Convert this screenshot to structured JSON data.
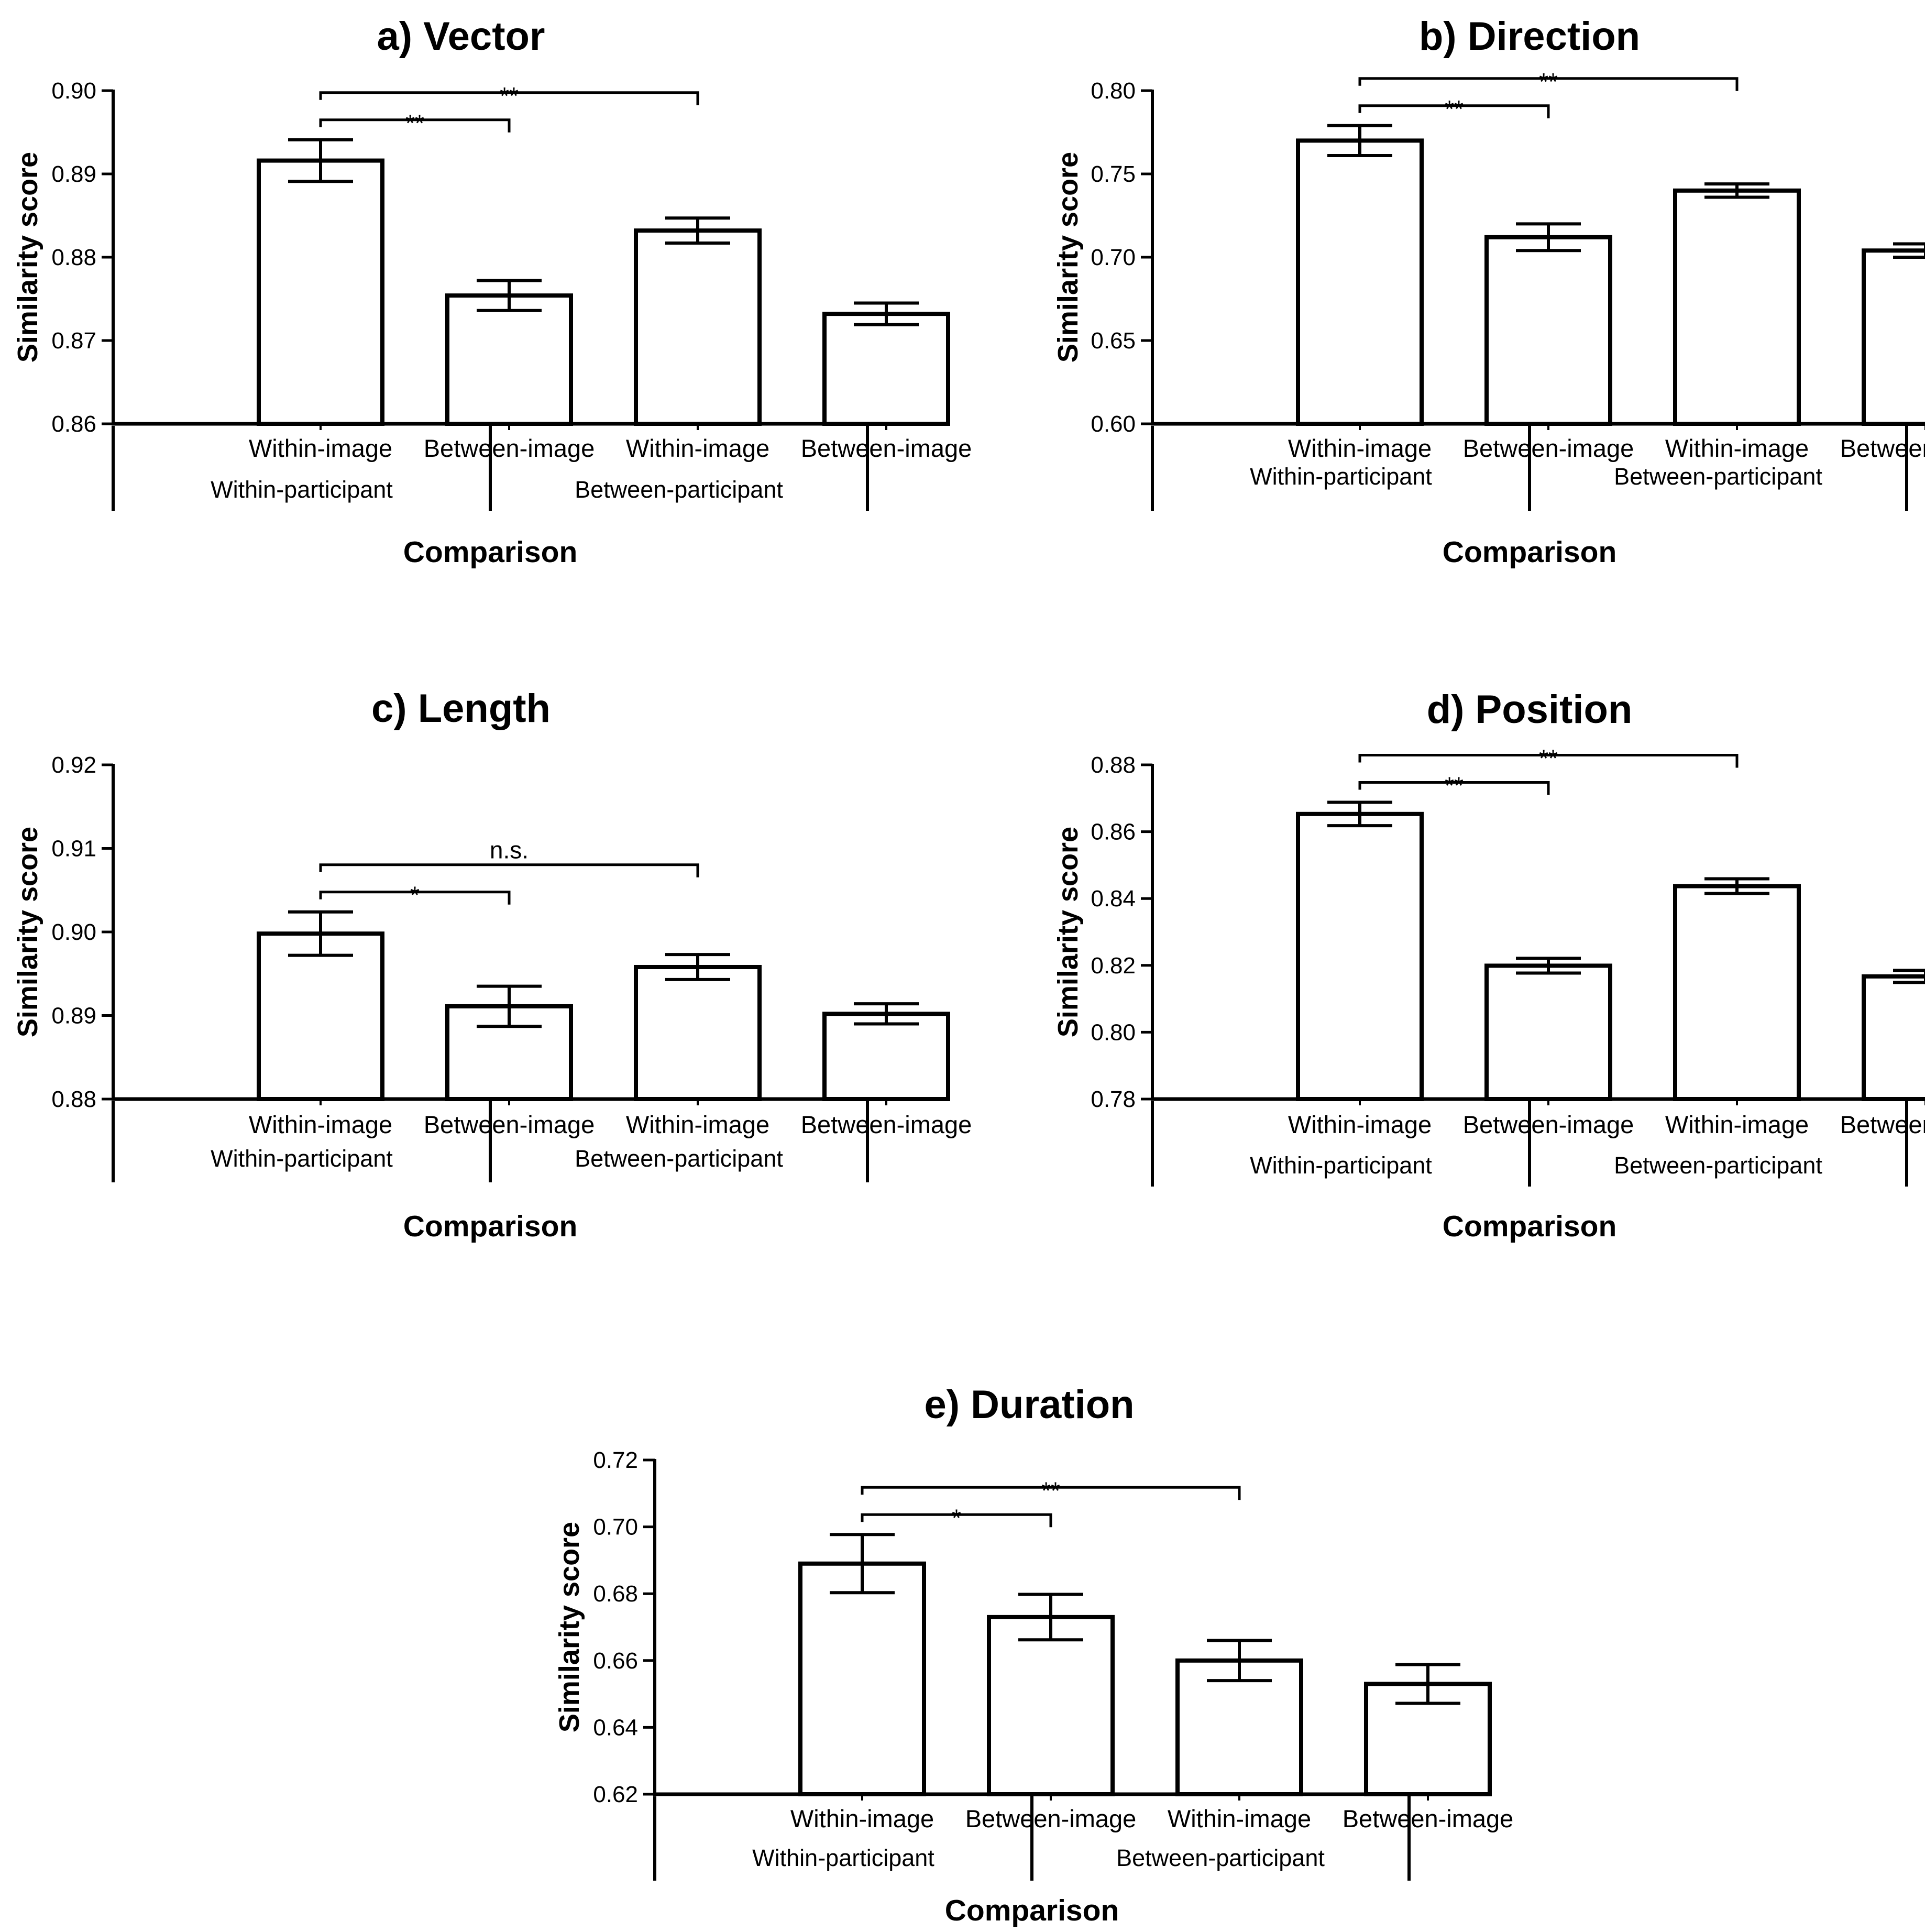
{
  "chart_data": [
    {
      "id": "vector",
      "type": "bar",
      "title": "a) Vector",
      "ylabel": "Similarity score",
      "xlabel": "Comparison",
      "ylim": [
        0.86,
        0.9
      ],
      "ticks": [
        "0.86",
        "0.87",
        "0.88",
        "0.89",
        "0.90"
      ],
      "categories": [
        "Within-image",
        "Between-image",
        "Within-image",
        "Between-image"
      ],
      "groups": [
        "Within-participant",
        "Between-participant"
      ],
      "values": [
        0.8916,
        0.8754,
        0.8832,
        0.8732
      ],
      "errors": [
        0.0025,
        0.0018,
        0.0015,
        0.0013
      ],
      "comparisons": [
        {
          "from": 0,
          "to": 1,
          "label": "**"
        },
        {
          "from": 0,
          "to": 2,
          "label": "**"
        }
      ]
    },
    {
      "id": "direction",
      "type": "bar",
      "title": "b) Direction",
      "ylabel": "Similarity score",
      "xlabel": "Comparison",
      "ylim": [
        0.6,
        0.8
      ],
      "ticks": [
        "0.60",
        "0.65",
        "0.70",
        "0.75",
        "0.80"
      ],
      "categories": [
        "Within-image",
        "Between-image",
        "Within-image",
        "Between-image"
      ],
      "groups": [
        "Within-participant",
        "Between-participant"
      ],
      "values": [
        0.77,
        0.712,
        0.74,
        0.704
      ],
      "errors": [
        0.009,
        0.008,
        0.004,
        0.004
      ],
      "comparisons": [
        {
          "from": 0,
          "to": 1,
          "label": "**"
        },
        {
          "from": 0,
          "to": 2,
          "label": "**"
        }
      ]
    },
    {
      "id": "length",
      "type": "bar",
      "title": "c) Length",
      "ylabel": "Similarity score",
      "xlabel": "Comparison",
      "ylim": [
        0.88,
        0.92
      ],
      "ticks": [
        "0.88",
        "0.89",
        "0.90",
        "0.91",
        "0.92"
      ],
      "categories": [
        "Within-image",
        "Between-image",
        "Within-image",
        "Between-image"
      ],
      "groups": [
        "Within-participant",
        "Between-participant"
      ],
      "values": [
        0.8998,
        0.8911,
        0.8958,
        0.8902
      ],
      "errors": [
        0.0026,
        0.0024,
        0.0015,
        0.0012
      ],
      "comparisons": [
        {
          "from": 0,
          "to": 1,
          "label": "*"
        },
        {
          "from": 0,
          "to": 2,
          "label": "n.s."
        }
      ]
    },
    {
      "id": "position",
      "type": "bar",
      "title": "d) Position",
      "ylabel": "Similarity score",
      "xlabel": "Comparison",
      "ylim": [
        0.78,
        0.88
      ],
      "ticks": [
        "0.78",
        "0.80",
        "0.82",
        "0.84",
        "0.86",
        "0.88"
      ],
      "categories": [
        "Within-image",
        "Between-image",
        "Within-image",
        "Between-image"
      ],
      "groups": [
        "Within-participant",
        "Between-participant"
      ],
      "values": [
        0.8653,
        0.8199,
        0.8437,
        0.8167
      ],
      "errors": [
        0.0035,
        0.0022,
        0.0022,
        0.0018
      ],
      "comparisons": [
        {
          "from": 0,
          "to": 1,
          "label": "**"
        },
        {
          "from": 0,
          "to": 2,
          "label": "**"
        }
      ]
    },
    {
      "id": "duration",
      "type": "bar",
      "title": "e) Duration",
      "ylabel": "Similarity score",
      "xlabel": "Comparison",
      "ylim": [
        0.62,
        0.72
      ],
      "ticks": [
        "0.62",
        "0.64",
        "0.66",
        "0.68",
        "0.70",
        "0.72"
      ],
      "categories": [
        "Within-image",
        "Between-image",
        "Within-image",
        "Between-image"
      ],
      "groups": [
        "Within-participant",
        "Between-participant"
      ],
      "values": [
        0.689,
        0.673,
        0.66,
        0.653
      ],
      "errors": [
        0.0087,
        0.0068,
        0.006,
        0.0058
      ],
      "comparisons": [
        {
          "from": 0,
          "to": 1,
          "label": "*"
        },
        {
          "from": 0,
          "to": 2,
          "label": "**"
        }
      ]
    }
  ]
}
